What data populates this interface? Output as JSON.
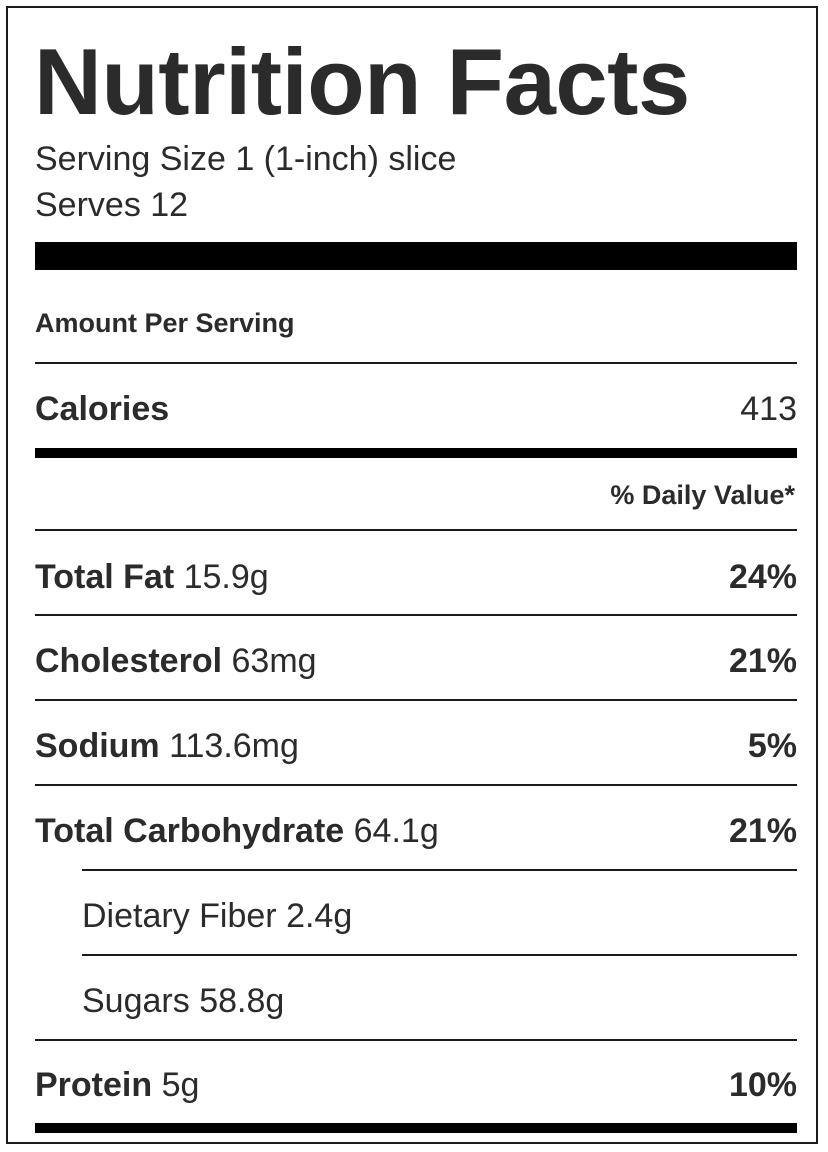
{
  "title": "Nutrition Facts",
  "serving_size": "Serving Size 1 (1-inch) slice",
  "serves": "Serves 12",
  "amount_per_serving": "Amount Per Serving",
  "calories_label": "Calories",
  "calories_value": "413",
  "daily_value_header": "% Daily Value*",
  "nutrients": [
    {
      "name": "Total Fat",
      "amount": "15.9g",
      "dv": "24%"
    },
    {
      "name": "Cholesterol",
      "amount": "63mg",
      "dv": "21%"
    },
    {
      "name": "Sodium",
      "amount": "113.6mg",
      "dv": "5%"
    },
    {
      "name": "Total Carbohydrate",
      "amount": "64.1g",
      "dv": "21%"
    },
    {
      "name": "Dietary Fiber",
      "amount": "2.4g",
      "dv": ""
    },
    {
      "name": "Sugars",
      "amount": "58.8g",
      "dv": ""
    },
    {
      "name": "Protein",
      "amount": "5g",
      "dv": "10%"
    }
  ]
}
